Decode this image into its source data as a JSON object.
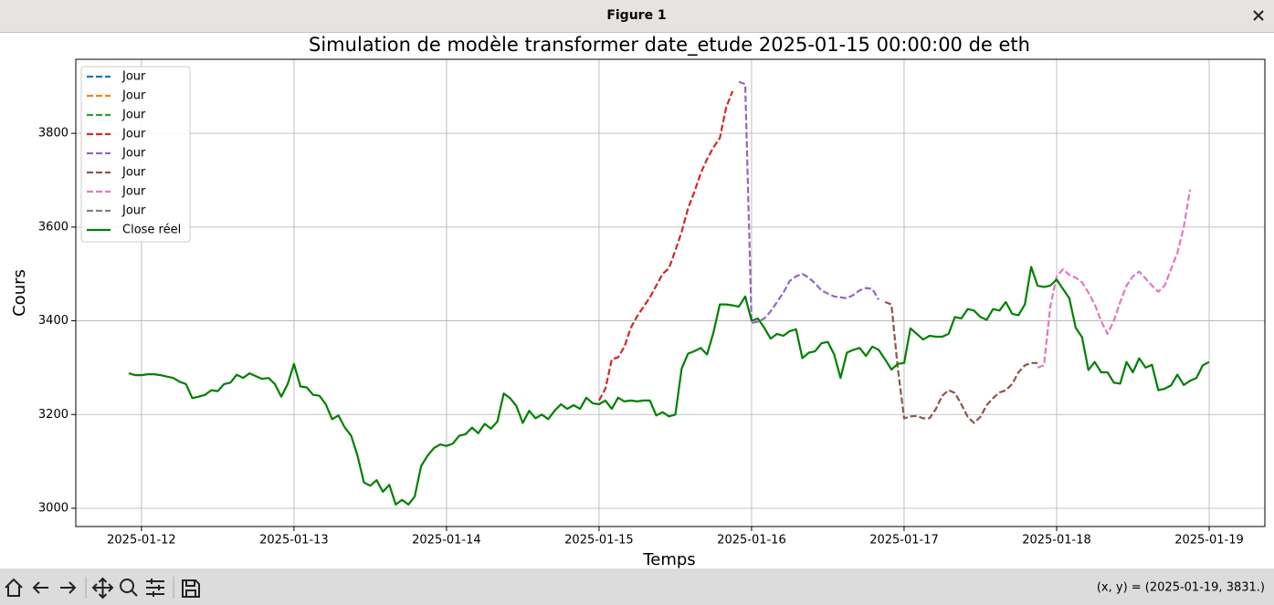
{
  "window": {
    "title": "Figure 1",
    "status": "(x, y) = (2025-01-19, 3831.)"
  },
  "chart_data": {
    "type": "line",
    "title": "Simulation de modèle transformer date_etude 2025-01-15 00:00:00 de  eth",
    "x_label": "Temps",
    "y_label": "Cours",
    "xlim": [
      "2025-01-11 13:40",
      "2025-01-19 08:46"
    ],
    "xticks": [
      "2025-01-12",
      "2025-01-13",
      "2025-01-14",
      "2025-01-15",
      "2025-01-16",
      "2025-01-17",
      "2025-01-18",
      "2025-01-19"
    ],
    "ylim": [
      2961,
      3958
    ],
    "yticks": [
      3000,
      3200,
      3400,
      3600,
      3800
    ],
    "grid": true,
    "legend": "upper left",
    "series": [
      {
        "name": "Jour",
        "color": "#1f77b4",
        "style": "dashed",
        "x": [],
        "values": []
      },
      {
        "name": "Jour",
        "color": "#ff7f0e",
        "style": "dashed",
        "x": [],
        "values": []
      },
      {
        "name": "Jour",
        "color": "#2ca02c",
        "style": "dashed",
        "x": [],
        "values": []
      },
      {
        "name": "Jour",
        "color": "#d62728",
        "style": "dashed",
        "x": [
          "2025-01-15 00:00",
          "2025-01-15 01:00",
          "2025-01-15 02:00",
          "2025-01-15 03:00",
          "2025-01-15 04:00",
          "2025-01-15 05:00",
          "2025-01-15 06:00",
          "2025-01-15 07:00",
          "2025-01-15 08:00",
          "2025-01-15 09:00",
          "2025-01-15 10:00",
          "2025-01-15 11:00",
          "2025-01-15 12:00",
          "2025-01-15 13:00",
          "2025-01-15 14:00",
          "2025-01-15 15:00",
          "2025-01-15 16:00",
          "2025-01-15 17:00",
          "2025-01-15 18:00",
          "2025-01-15 19:00",
          "2025-01-15 20:00",
          "2025-01-15 21:00"
        ],
        "values": [
          3230,
          3255,
          3318,
          3322,
          3345,
          3385,
          3410,
          3430,
          3450,
          3475,
          3500,
          3512,
          3550,
          3590,
          3640,
          3675,
          3715,
          3745,
          3770,
          3790,
          3855,
          3890
        ]
      },
      {
        "name": "Jour",
        "color": "#9467bd",
        "style": "dashed",
        "x": [
          "2025-01-15 22:00",
          "2025-01-15 23:00",
          "2025-01-16 00:00",
          "2025-01-16 01:00",
          "2025-01-16 02:00",
          "2025-01-16 03:00",
          "2025-01-16 04:00",
          "2025-01-16 05:00",
          "2025-01-16 06:00",
          "2025-01-16 07:00",
          "2025-01-16 08:00",
          "2025-01-16 09:00",
          "2025-01-16 10:00",
          "2025-01-16 11:00",
          "2025-01-16 12:00",
          "2025-01-16 13:00",
          "2025-01-16 14:00",
          "2025-01-16 15:00",
          "2025-01-16 16:00",
          "2025-01-16 17:00",
          "2025-01-16 18:00",
          "2025-01-16 19:00",
          "2025-01-16 20:00"
        ],
        "values": [
          3910,
          3905,
          3395,
          3398,
          3405,
          3420,
          3440,
          3460,
          3485,
          3495,
          3500,
          3492,
          3480,
          3465,
          3458,
          3452,
          3450,
          3448,
          3455,
          3465,
          3470,
          3468,
          3445
        ]
      },
      {
        "name": "Jour",
        "color": "#8c564b",
        "style": "dashed",
        "x": [
          "2025-01-16 21:00",
          "2025-01-16 22:00",
          "2025-01-16 23:00",
          "2025-01-17 00:00",
          "2025-01-17 01:00",
          "2025-01-17 02:00",
          "2025-01-17 03:00",
          "2025-01-17 04:00",
          "2025-01-17 05:00",
          "2025-01-17 06:00",
          "2025-01-17 07:00",
          "2025-01-17 08:00",
          "2025-01-17 09:00",
          "2025-01-17 10:00",
          "2025-01-17 11:00",
          "2025-01-17 12:00",
          "2025-01-17 13:00",
          "2025-01-17 14:00",
          "2025-01-17 15:00",
          "2025-01-17 16:00",
          "2025-01-17 17:00",
          "2025-01-17 18:00",
          "2025-01-17 19:00",
          "2025-01-17 20:00",
          "2025-01-17 21:00"
        ],
        "values": [
          3440,
          3435,
          3300,
          3192,
          3196,
          3197,
          3192,
          3192,
          3212,
          3240,
          3252,
          3246,
          3222,
          3195,
          3182,
          3195,
          3220,
          3235,
          3247,
          3252,
          3265,
          3290,
          3305,
          3310,
          3310
        ]
      },
      {
        "name": "Jour",
        "color": "#e377c2",
        "style": "dashed",
        "x": [
          "2025-01-17 21:00",
          "2025-01-17 22:00",
          "2025-01-17 23:00",
          "2025-01-18 00:00",
          "2025-01-18 01:00",
          "2025-01-18 02:00",
          "2025-01-18 03:00",
          "2025-01-18 04:00",
          "2025-01-18 05:00",
          "2025-01-18 06:00",
          "2025-01-18 07:00",
          "2025-01-18 08:00",
          "2025-01-18 09:00",
          "2025-01-18 10:00",
          "2025-01-18 11:00",
          "2025-01-18 12:00",
          "2025-01-18 13:00",
          "2025-01-18 14:00",
          "2025-01-18 15:00",
          "2025-01-18 16:00",
          "2025-01-18 17:00",
          "2025-01-18 18:00",
          "2025-01-18 19:00",
          "2025-01-18 20:00",
          "2025-01-18 21:00"
        ],
        "values": [
          3300,
          3305,
          3430,
          3495,
          3510,
          3498,
          3492,
          3482,
          3460,
          3435,
          3400,
          3372,
          3400,
          3440,
          3475,
          3495,
          3505,
          3490,
          3475,
          3462,
          3475,
          3510,
          3545,
          3600,
          3680
        ]
      },
      {
        "name": "Jour",
        "color": "#7f7f7f",
        "style": "dashed",
        "x": [],
        "values": []
      },
      {
        "name": "Close réel",
        "color": "#008000",
        "style": "solid",
        "x": [
          "2025-01-11 22:00",
          "2025-01-11 23:00",
          "2025-01-12 00:00",
          "2025-01-12 01:00",
          "2025-01-12 02:00",
          "2025-01-12 03:00",
          "2025-01-12 04:00",
          "2025-01-12 05:00",
          "2025-01-12 06:00",
          "2025-01-12 07:00",
          "2025-01-12 08:00",
          "2025-01-12 09:00",
          "2025-01-12 10:00",
          "2025-01-12 11:00",
          "2025-01-12 12:00",
          "2025-01-12 13:00",
          "2025-01-12 14:00",
          "2025-01-12 15:00",
          "2025-01-12 16:00",
          "2025-01-12 17:00",
          "2025-01-12 18:00",
          "2025-01-12 19:00",
          "2025-01-12 20:00",
          "2025-01-12 21:00",
          "2025-01-12 22:00",
          "2025-01-12 23:00",
          "2025-01-13 00:00",
          "2025-01-13 01:00",
          "2025-01-13 02:00",
          "2025-01-13 03:00",
          "2025-01-13 04:00",
          "2025-01-13 05:00",
          "2025-01-13 06:00",
          "2025-01-13 07:00",
          "2025-01-13 08:00",
          "2025-01-13 09:00",
          "2025-01-13 10:00",
          "2025-01-13 11:00",
          "2025-01-13 12:00",
          "2025-01-13 13:00",
          "2025-01-13 14:00",
          "2025-01-13 15:00",
          "2025-01-13 16:00",
          "2025-01-13 17:00",
          "2025-01-13 18:00",
          "2025-01-13 19:00",
          "2025-01-13 20:00",
          "2025-01-13 21:00",
          "2025-01-13 22:00",
          "2025-01-13 23:00",
          "2025-01-14 00:00",
          "2025-01-14 01:00",
          "2025-01-14 02:00",
          "2025-01-14 03:00",
          "2025-01-14 04:00",
          "2025-01-14 05:00",
          "2025-01-14 06:00",
          "2025-01-14 07:00",
          "2025-01-14 08:00",
          "2025-01-14 09:00",
          "2025-01-14 10:00",
          "2025-01-14 11:00",
          "2025-01-14 12:00",
          "2025-01-14 13:00",
          "2025-01-14 14:00",
          "2025-01-14 15:00",
          "2025-01-14 16:00",
          "2025-01-14 17:00",
          "2025-01-14 18:00",
          "2025-01-14 19:00",
          "2025-01-14 20:00",
          "2025-01-14 21:00",
          "2025-01-14 22:00",
          "2025-01-14 23:00",
          "2025-01-15 00:00",
          "2025-01-15 01:00",
          "2025-01-15 02:00",
          "2025-01-15 03:00",
          "2025-01-15 04:00",
          "2025-01-15 05:00",
          "2025-01-15 06:00",
          "2025-01-15 07:00",
          "2025-01-15 08:00",
          "2025-01-15 09:00",
          "2025-01-15 10:00",
          "2025-01-15 11:00",
          "2025-01-15 12:00",
          "2025-01-15 13:00",
          "2025-01-15 14:00",
          "2025-01-15 15:00",
          "2025-01-15 16:00",
          "2025-01-15 17:00",
          "2025-01-15 18:00",
          "2025-01-15 19:00",
          "2025-01-15 20:00",
          "2025-01-15 21:00",
          "2025-01-15 22:00",
          "2025-01-15 23:00",
          "2025-01-16 00:00",
          "2025-01-16 01:00",
          "2025-01-16 02:00",
          "2025-01-16 03:00",
          "2025-01-16 04:00",
          "2025-01-16 05:00",
          "2025-01-16 06:00",
          "2025-01-16 07:00",
          "2025-01-16 08:00",
          "2025-01-16 09:00",
          "2025-01-16 10:00",
          "2025-01-16 11:00",
          "2025-01-16 12:00",
          "2025-01-16 13:00",
          "2025-01-16 14:00",
          "2025-01-16 15:00",
          "2025-01-16 16:00",
          "2025-01-16 17:00",
          "2025-01-16 18:00",
          "2025-01-16 19:00",
          "2025-01-16 20:00",
          "2025-01-16 21:00",
          "2025-01-16 22:00",
          "2025-01-16 23:00",
          "2025-01-17 00:00",
          "2025-01-17 01:00",
          "2025-01-17 02:00",
          "2025-01-17 03:00",
          "2025-01-17 04:00",
          "2025-01-17 05:00",
          "2025-01-17 06:00",
          "2025-01-17 07:00",
          "2025-01-17 08:00",
          "2025-01-17 09:00",
          "2025-01-17 10:00",
          "2025-01-17 11:00",
          "2025-01-17 12:00",
          "2025-01-17 13:00",
          "2025-01-17 14:00",
          "2025-01-17 15:00",
          "2025-01-17 16:00",
          "2025-01-17 17:00",
          "2025-01-17 18:00",
          "2025-01-17 19:00",
          "2025-01-17 20:00",
          "2025-01-17 21:00",
          "2025-01-17 22:00",
          "2025-01-17 23:00",
          "2025-01-18 00:00",
          "2025-01-18 01:00",
          "2025-01-18 02:00",
          "2025-01-18 03:00",
          "2025-01-18 04:00",
          "2025-01-18 05:00",
          "2025-01-18 06:00",
          "2025-01-18 07:00",
          "2025-01-18 08:00",
          "2025-01-18 09:00",
          "2025-01-18 10:00",
          "2025-01-18 11:00",
          "2025-01-18 12:00",
          "2025-01-18 13:00",
          "2025-01-18 14:00",
          "2025-01-18 15:00",
          "2025-01-18 16:00",
          "2025-01-18 17:00",
          "2025-01-18 18:00",
          "2025-01-18 19:00",
          "2025-01-18 20:00",
          "2025-01-18 21:00",
          "2025-01-18 22:00",
          "2025-01-18 23:00",
          "2025-01-19 00:00"
        ],
        "values": [
          3288,
          3284,
          3284,
          3286,
          3286,
          3284,
          3281,
          3278,
          3270,
          3265,
          3235,
          3238,
          3242,
          3252,
          3250,
          3265,
          3268,
          3285,
          3278,
          3288,
          3282,
          3276,
          3278,
          3265,
          3238,
          3265,
          3308,
          3260,
          3258,
          3242,
          3240,
          3222,
          3190,
          3198,
          3172,
          3155,
          3112,
          3055,
          3048,
          3060,
          3035,
          3050,
          3008,
          3018,
          3008,
          3025,
          3090,
          3112,
          3128,
          3136,
          3133,
          3138,
          3155,
          3158,
          3172,
          3160,
          3180,
          3170,
          3185,
          3245,
          3235,
          3218,
          3182,
          3208,
          3192,
          3200,
          3190,
          3208,
          3222,
          3212,
          3220,
          3212,
          3236,
          3224,
          3222,
          3230,
          3212,
          3236,
          3228,
          3230,
          3228,
          3230,
          3230,
          3198,
          3205,
          3196,
          3200,
          3298,
          3330,
          3335,
          3342,
          3328,
          3375,
          3435,
          3435,
          3433,
          3430,
          3452,
          3400,
          3405,
          3385,
          3362,
          3372,
          3368,
          3378,
          3382,
          3320,
          3332,
          3335,
          3352,
          3355,
          3328,
          3278,
          3332,
          3338,
          3342,
          3325,
          3345,
          3338,
          3318,
          3296,
          3308,
          3310,
          3384,
          3372,
          3360,
          3368,
          3366,
          3366,
          3372,
          3408,
          3405,
          3425,
          3422,
          3408,
          3402,
          3425,
          3422,
          3440,
          3415,
          3412,
          3435,
          3515,
          3475,
          3472,
          3475,
          3488,
          3468,
          3448,
          3385,
          3365,
          3295,
          3312,
          3290,
          3290,
          3268,
          3266,
          3312,
          3290,
          3320,
          3300,
          3306,
          3252,
          3255,
          3262,
          3285,
          3263,
          3272,
          3278,
          3305,
          3312
        ]
      }
    ]
  }
}
